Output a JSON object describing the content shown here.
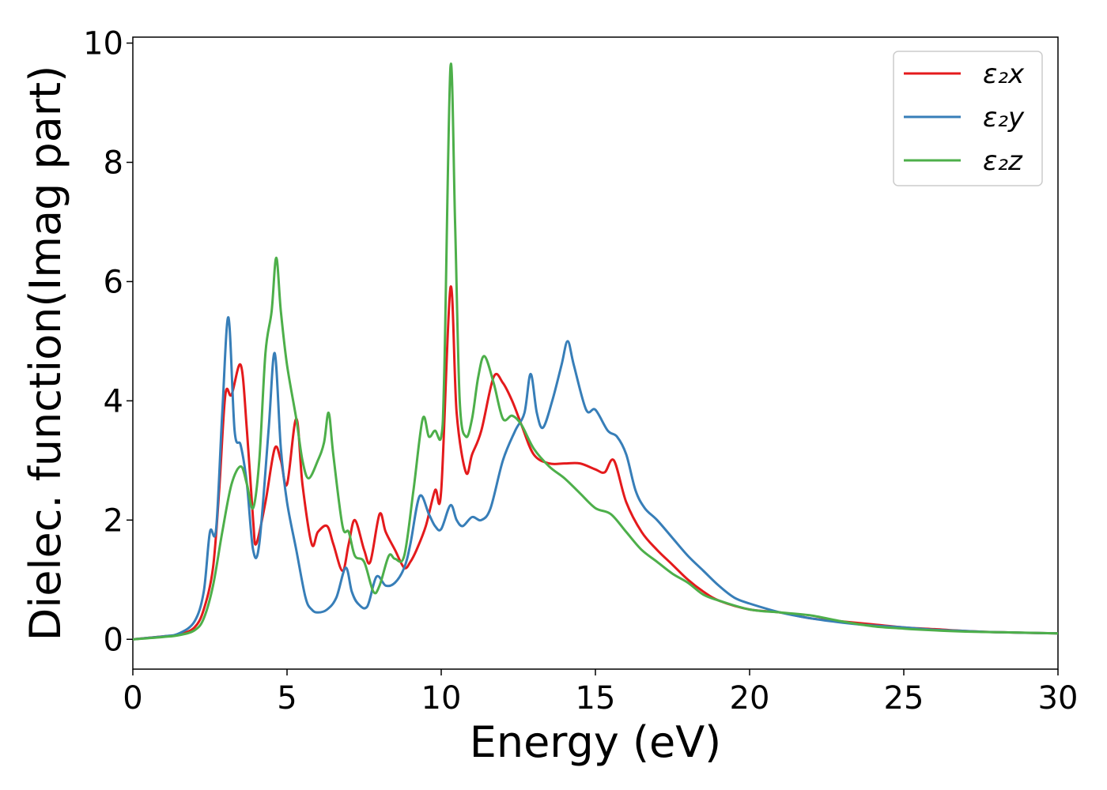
{
  "chart_data": {
    "type": "line",
    "xlabel": "Energy (eV)",
    "ylabel": "Dielec. function(Imag part)",
    "xlim": [
      0,
      30
    ],
    "ylim": [
      -0.5,
      10.1
    ],
    "xticks": [
      0,
      5,
      10,
      15,
      20,
      25,
      30
    ],
    "yticks": [
      0,
      2,
      4,
      6,
      8,
      10
    ],
    "grid": false,
    "legend_position": "top-right",
    "series": [
      {
        "name": "ε₂x",
        "color": "#e41a1c",
        "points": [
          [
            0,
            0
          ],
          [
            1,
            0.05
          ],
          [
            1.5,
            0.08
          ],
          [
            2,
            0.2
          ],
          [
            2.3,
            0.5
          ],
          [
            2.6,
            1.2
          ],
          [
            2.8,
            2.5
          ],
          [
            3.0,
            4.1
          ],
          [
            3.2,
            4.1
          ],
          [
            3.5,
            4.6
          ],
          [
            3.7,
            3.5
          ],
          [
            3.9,
            2.0
          ],
          [
            4.0,
            1.6
          ],
          [
            4.3,
            2.3
          ],
          [
            4.6,
            3.2
          ],
          [
            4.8,
            3.0
          ],
          [
            5.0,
            2.6
          ],
          [
            5.3,
            3.7
          ],
          [
            5.5,
            2.6
          ],
          [
            5.8,
            1.6
          ],
          [
            6.0,
            1.8
          ],
          [
            6.3,
            1.9
          ],
          [
            6.5,
            1.6
          ],
          [
            6.8,
            1.15
          ],
          [
            7.0,
            1.6
          ],
          [
            7.2,
            2.0
          ],
          [
            7.5,
            1.5
          ],
          [
            7.7,
            1.3
          ],
          [
            8.0,
            2.1
          ],
          [
            8.2,
            1.8
          ],
          [
            8.5,
            1.5
          ],
          [
            8.8,
            1.2
          ],
          [
            9.0,
            1.3
          ],
          [
            9.2,
            1.5
          ],
          [
            9.5,
            1.9
          ],
          [
            9.8,
            2.5
          ],
          [
            10.0,
            2.5
          ],
          [
            10.3,
            5.9
          ],
          [
            10.5,
            3.8
          ],
          [
            10.8,
            2.8
          ],
          [
            11.0,
            3.1
          ],
          [
            11.3,
            3.5
          ],
          [
            11.7,
            4.4
          ],
          [
            12.0,
            4.3
          ],
          [
            12.3,
            4.0
          ],
          [
            12.6,
            3.6
          ],
          [
            13.0,
            3.1
          ],
          [
            13.5,
            2.95
          ],
          [
            14.0,
            2.95
          ],
          [
            14.5,
            2.95
          ],
          [
            15.0,
            2.85
          ],
          [
            15.3,
            2.8
          ],
          [
            15.6,
            3.0
          ],
          [
            16.0,
            2.3
          ],
          [
            16.5,
            1.8
          ],
          [
            17.0,
            1.5
          ],
          [
            17.5,
            1.25
          ],
          [
            18.0,
            1.0
          ],
          [
            18.5,
            0.8
          ],
          [
            19.0,
            0.65
          ],
          [
            20.0,
            0.5
          ],
          [
            21.0,
            0.45
          ],
          [
            22.0,
            0.35
          ],
          [
            23.0,
            0.3
          ],
          [
            24.0,
            0.25
          ],
          [
            25.0,
            0.2
          ],
          [
            26.0,
            0.17
          ],
          [
            27.0,
            0.14
          ],
          [
            28.0,
            0.12
          ],
          [
            30.0,
            0.1
          ]
        ]
      },
      {
        "name": "ε₂y",
        "color": "#377eb8",
        "points": [
          [
            0,
            0
          ],
          [
            1,
            0.05
          ],
          [
            1.5,
            0.1
          ],
          [
            2,
            0.3
          ],
          [
            2.3,
            0.8
          ],
          [
            2.5,
            1.8
          ],
          [
            2.7,
            1.85
          ],
          [
            2.9,
            3.8
          ],
          [
            3.1,
            5.4
          ],
          [
            3.3,
            3.5
          ],
          [
            3.5,
            3.25
          ],
          [
            3.7,
            2.6
          ],
          [
            3.9,
            1.5
          ],
          [
            4.1,
            1.6
          ],
          [
            4.4,
            3.5
          ],
          [
            4.6,
            4.8
          ],
          [
            4.8,
            3.2
          ],
          [
            5.0,
            2.3
          ],
          [
            5.3,
            1.5
          ],
          [
            5.6,
            0.7
          ],
          [
            5.8,
            0.5
          ],
          [
            6.0,
            0.45
          ],
          [
            6.3,
            0.5
          ],
          [
            6.6,
            0.7
          ],
          [
            6.9,
            1.2
          ],
          [
            7.1,
            0.8
          ],
          [
            7.3,
            0.6
          ],
          [
            7.6,
            0.55
          ],
          [
            7.9,
            1.05
          ],
          [
            8.2,
            0.9
          ],
          [
            8.5,
            0.95
          ],
          [
            8.8,
            1.2
          ],
          [
            9.0,
            1.6
          ],
          [
            9.3,
            2.4
          ],
          [
            9.6,
            2.1
          ],
          [
            9.8,
            1.9
          ],
          [
            10.0,
            1.85
          ],
          [
            10.3,
            2.25
          ],
          [
            10.5,
            2.0
          ],
          [
            10.7,
            1.9
          ],
          [
            11.0,
            2.05
          ],
          [
            11.3,
            2.0
          ],
          [
            11.6,
            2.2
          ],
          [
            12.0,
            3.0
          ],
          [
            12.4,
            3.5
          ],
          [
            12.7,
            3.8
          ],
          [
            12.9,
            4.45
          ],
          [
            13.1,
            3.8
          ],
          [
            13.3,
            3.55
          ],
          [
            13.6,
            4.0
          ],
          [
            13.9,
            4.6
          ],
          [
            14.1,
            5.0
          ],
          [
            14.3,
            4.6
          ],
          [
            14.7,
            3.85
          ],
          [
            15.0,
            3.85
          ],
          [
            15.4,
            3.5
          ],
          [
            15.7,
            3.4
          ],
          [
            16.0,
            3.1
          ],
          [
            16.3,
            2.5
          ],
          [
            16.6,
            2.2
          ],
          [
            17.0,
            2.0
          ],
          [
            17.5,
            1.7
          ],
          [
            18.0,
            1.4
          ],
          [
            18.5,
            1.15
          ],
          [
            19.0,
            0.9
          ],
          [
            19.5,
            0.7
          ],
          [
            20.0,
            0.6
          ],
          [
            21.0,
            0.45
          ],
          [
            22.0,
            0.35
          ],
          [
            23.0,
            0.28
          ],
          [
            24.0,
            0.23
          ],
          [
            25.0,
            0.2
          ],
          [
            26.0,
            0.16
          ],
          [
            27.0,
            0.14
          ],
          [
            28.0,
            0.12
          ],
          [
            30.0,
            0.1
          ]
        ]
      },
      {
        "name": "ε₂z",
        "color": "#4daf4a",
        "points": [
          [
            0,
            0
          ],
          [
            1,
            0.04
          ],
          [
            1.5,
            0.07
          ],
          [
            2,
            0.15
          ],
          [
            2.3,
            0.35
          ],
          [
            2.6,
            0.9
          ],
          [
            2.9,
            1.8
          ],
          [
            3.2,
            2.6
          ],
          [
            3.5,
            2.9
          ],
          [
            3.7,
            2.6
          ],
          [
            3.9,
            2.2
          ],
          [
            4.1,
            3.0
          ],
          [
            4.3,
            4.8
          ],
          [
            4.5,
            5.5
          ],
          [
            4.65,
            6.4
          ],
          [
            4.8,
            5.5
          ],
          [
            5.0,
            4.6
          ],
          [
            5.3,
            3.7
          ],
          [
            5.5,
            3.0
          ],
          [
            5.7,
            2.7
          ],
          [
            6.0,
            3.0
          ],
          [
            6.2,
            3.3
          ],
          [
            6.35,
            3.8
          ],
          [
            6.5,
            3.1
          ],
          [
            6.8,
            1.9
          ],
          [
            7.0,
            1.8
          ],
          [
            7.2,
            1.4
          ],
          [
            7.5,
            1.3
          ],
          [
            7.8,
            0.8
          ],
          [
            8.0,
            0.9
          ],
          [
            8.3,
            1.4
          ],
          [
            8.5,
            1.35
          ],
          [
            8.8,
            1.4
          ],
          [
            9.1,
            2.5
          ],
          [
            9.4,
            3.7
          ],
          [
            9.6,
            3.4
          ],
          [
            9.8,
            3.5
          ],
          [
            10.0,
            3.4
          ],
          [
            10.1,
            4.5
          ],
          [
            10.3,
            9.6
          ],
          [
            10.45,
            7.0
          ],
          [
            10.6,
            4.0
          ],
          [
            10.8,
            3.4
          ],
          [
            11.0,
            3.7
          ],
          [
            11.2,
            4.4
          ],
          [
            11.4,
            4.75
          ],
          [
            11.7,
            4.3
          ],
          [
            12.0,
            3.7
          ],
          [
            12.3,
            3.75
          ],
          [
            12.6,
            3.6
          ],
          [
            13.0,
            3.2
          ],
          [
            13.5,
            2.9
          ],
          [
            14.0,
            2.7
          ],
          [
            14.5,
            2.45
          ],
          [
            15.0,
            2.2
          ],
          [
            15.5,
            2.1
          ],
          [
            16.0,
            1.8
          ],
          [
            16.5,
            1.5
          ],
          [
            17.0,
            1.3
          ],
          [
            17.5,
            1.1
          ],
          [
            18.0,
            0.95
          ],
          [
            18.5,
            0.75
          ],
          [
            19.0,
            0.65
          ],
          [
            20.0,
            0.5
          ],
          [
            21.0,
            0.45
          ],
          [
            22.0,
            0.4
          ],
          [
            23.0,
            0.3
          ],
          [
            24.0,
            0.22
          ],
          [
            25.0,
            0.18
          ],
          [
            26.0,
            0.15
          ],
          [
            27.0,
            0.13
          ],
          [
            28.0,
            0.12
          ],
          [
            30.0,
            0.1
          ]
        ]
      }
    ]
  }
}
